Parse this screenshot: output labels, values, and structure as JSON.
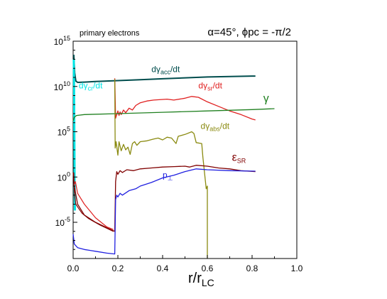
{
  "chart_data": {
    "type": "line",
    "title_left": "primary electrons",
    "title_right": "α=45°, ϕpc = -π/2",
    "xlabel": "r/rLC",
    "ylabel": "",
    "xlim": [
      0.0,
      1.0
    ],
    "ylim_log10": [
      -9,
      15
    ],
    "y_scale": "log",
    "grid": false,
    "legend": "none",
    "x_ticks": [
      {
        "value": 0.0,
        "label": "0.0"
      },
      {
        "value": 0.2,
        "label": "0.2"
      },
      {
        "value": 0.4,
        "label": "0.4"
      },
      {
        "value": 0.6,
        "label": "0.6"
      },
      {
        "value": 0.8,
        "label": "0.8"
      },
      {
        "value": 1.0,
        "label": "1.0"
      }
    ],
    "y_ticks": [
      {
        "exp": 15,
        "base": "10",
        "sup": "15"
      },
      {
        "exp": 10,
        "base": "10",
        "sup": "10"
      },
      {
        "exp": 5,
        "base": "10",
        "sup": "5"
      },
      {
        "exp": 0,
        "base": "10",
        "sup": "0"
      },
      {
        "exp": -5,
        "base": "10",
        "sup": "-5"
      }
    ],
    "series": [
      {
        "name": "dγacc/dt",
        "label": {
          "base": "dγ",
          "sub": "acc",
          "tail": "/dt"
        },
        "color": "#004d4d",
        "width": 2,
        "points": [
          [
            0.003,
            13.5
          ],
          [
            0.007,
            11.5
          ],
          [
            0.012,
            10.6
          ],
          [
            0.02,
            10.45
          ],
          [
            0.05,
            10.48
          ],
          [
            0.1,
            10.55
          ],
          [
            0.2,
            10.65
          ],
          [
            0.3,
            10.75
          ],
          [
            0.4,
            10.85
          ],
          [
            0.5,
            10.95
          ],
          [
            0.6,
            11.05
          ],
          [
            0.7,
            11.1
          ],
          [
            0.8,
            11.15
          ],
          [
            0.815,
            11.15
          ]
        ]
      },
      {
        "name": "dγcr/dt",
        "label": {
          "base": "dγ",
          "sub": "cr",
          "tail": "/dt"
        },
        "color": "#00e5e5",
        "width": 3,
        "points": [
          [
            0.003,
            13.0
          ],
          [
            0.004,
            10.0
          ],
          [
            0.005,
            6.0
          ],
          [
            0.006,
            2.0
          ],
          [
            0.007,
            -2.0
          ],
          [
            0.008,
            -3.7
          ]
        ]
      },
      {
        "name": "dγsr/dt",
        "label": {
          "base": "dγ",
          "sub": "sr",
          "tail": "/dt"
        },
        "color": "#e02020",
        "width": 1.3,
        "points": [
          [
            0.186,
            10.9
          ],
          [
            0.19,
            6.5
          ],
          [
            0.2,
            7.3
          ],
          [
            0.205,
            6.8
          ],
          [
            0.21,
            7.2
          ],
          [
            0.215,
            6.9
          ],
          [
            0.225,
            7.4
          ],
          [
            0.235,
            7.1
          ],
          [
            0.25,
            7.6
          ],
          [
            0.265,
            7.4
          ],
          [
            0.28,
            7.9
          ],
          [
            0.3,
            8.2
          ],
          [
            0.33,
            8.4
          ],
          [
            0.36,
            8.5
          ],
          [
            0.42,
            8.6
          ],
          [
            0.45,
            8.5
          ],
          [
            0.5,
            8.7
          ],
          [
            0.53,
            8.9
          ],
          [
            0.56,
            8.8
          ],
          [
            0.6,
            8.3
          ],
          [
            0.65,
            7.8
          ],
          [
            0.7,
            7.3
          ],
          [
            0.75,
            6.9
          ],
          [
            0.8,
            6.4
          ],
          [
            0.815,
            6.3
          ]
        ]
      },
      {
        "name": "γ",
        "label": {
          "base": "γ",
          "sub": "",
          "tail": ""
        },
        "color": "#208020",
        "width": 1.3,
        "points": [
          [
            0.0,
            6.2
          ],
          [
            0.005,
            6.6
          ],
          [
            0.015,
            6.8
          ],
          [
            0.05,
            6.9
          ],
          [
            0.2,
            7.0
          ],
          [
            0.4,
            7.15
          ],
          [
            0.6,
            7.3
          ],
          [
            0.8,
            7.45
          ],
          [
            0.9,
            7.55
          ]
        ]
      },
      {
        "name": "dγabs/dt",
        "label": {
          "base": "dγ",
          "sub": "abs",
          "tail": "/dt"
        },
        "color": "#8a8a10",
        "width": 1.3,
        "points": [
          [
            0.186,
            10.8
          ],
          [
            0.188,
            3.2
          ],
          [
            0.192,
            3.9
          ],
          [
            0.2,
            2.4
          ],
          [
            0.205,
            3.9
          ],
          [
            0.215,
            2.9
          ],
          [
            0.225,
            3.6
          ],
          [
            0.235,
            3.0
          ],
          [
            0.245,
            3.3
          ],
          [
            0.255,
            2.5
          ],
          [
            0.265,
            3.7
          ],
          [
            0.275,
            3.9
          ],
          [
            0.285,
            3.5
          ],
          [
            0.3,
            3.9
          ],
          [
            0.33,
            4.0
          ],
          [
            0.36,
            4.2
          ],
          [
            0.38,
            4.3
          ],
          [
            0.4,
            4.1
          ],
          [
            0.42,
            4.4
          ],
          [
            0.44,
            4.3
          ],
          [
            0.46,
            3.7
          ],
          [
            0.47,
            4.5
          ],
          [
            0.5,
            4.7
          ],
          [
            0.53,
            5.0
          ],
          [
            0.54,
            4.8
          ],
          [
            0.55,
            3.8
          ],
          [
            0.575,
            3.7
          ],
          [
            0.58,
            2.2
          ],
          [
            0.595,
            -1.3
          ],
          [
            0.6,
            -1.0
          ],
          [
            0.6,
            -11.0
          ]
        ]
      },
      {
        "name": "εSR",
        "label": {
          "base": "ε",
          "sub": "SR",
          "tail": ""
        },
        "color": "#800000",
        "width": 1.3,
        "points": [
          [
            0.0,
            0.5
          ],
          [
            0.005,
            -1.0
          ],
          [
            0.02,
            -3.0
          ],
          [
            0.05,
            -4.2
          ],
          [
            0.1,
            -5.0
          ],
          [
            0.15,
            -5.6
          ],
          [
            0.186,
            -6.0
          ],
          [
            0.19,
            -0.5
          ],
          [
            0.195,
            0.6
          ],
          [
            0.2,
            0.3
          ],
          [
            0.21,
            0.7
          ],
          [
            0.22,
            0.5
          ],
          [
            0.24,
            0.8
          ],
          [
            0.27,
            0.7
          ],
          [
            0.3,
            0.9
          ],
          [
            0.35,
            1.0
          ],
          [
            0.4,
            1.1
          ],
          [
            0.45,
            1.15
          ],
          [
            0.5,
            1.2
          ],
          [
            0.52,
            1.1
          ],
          [
            0.55,
            1.3
          ],
          [
            0.6,
            1.2
          ],
          [
            0.65,
            1.0
          ],
          [
            0.7,
            0.9
          ],
          [
            0.75,
            0.7
          ],
          [
            0.815,
            0.6
          ]
        ]
      },
      {
        "name": "p⊥",
        "label": {
          "base": "p",
          "sub": "⊥",
          "tail": ""
        },
        "color": "#2020e0",
        "width": 1.3,
        "points": [
          [
            0.0,
            -6.3
          ],
          [
            0.005,
            -7.4
          ],
          [
            0.02,
            -7.8
          ],
          [
            0.05,
            -8.0
          ],
          [
            0.1,
            -8.2
          ],
          [
            0.15,
            -8.4
          ],
          [
            0.186,
            -8.5
          ],
          [
            0.19,
            -2.5
          ],
          [
            0.195,
            -2.0
          ],
          [
            0.2,
            -2.2
          ],
          [
            0.21,
            -1.8
          ],
          [
            0.22,
            -2.0
          ],
          [
            0.25,
            -1.5
          ],
          [
            0.28,
            -1.3
          ],
          [
            0.3,
            -1.0
          ],
          [
            0.35,
            -0.6
          ],
          [
            0.4,
            -0.1
          ],
          [
            0.45,
            0.2
          ],
          [
            0.5,
            0.6
          ],
          [
            0.55,
            0.9
          ],
          [
            0.6,
            0.8
          ],
          [
            0.7,
            0.7
          ],
          [
            0.815,
            0.65
          ]
        ]
      },
      {
        "name": "primary-initial",
        "label": {
          "base": "",
          "sub": "",
          "tail": ""
        },
        "color": "#800000",
        "width": 1.2,
        "points": [
          [
            0.003,
            0.5
          ],
          [
            0.006,
            -2.0
          ],
          [
            0.012,
            -3.0
          ],
          [
            0.02,
            -3.3
          ],
          [
            0.04,
            -4.0
          ],
          [
            0.07,
            -4.6
          ],
          [
            0.12,
            -5.3
          ],
          [
            0.18,
            -6.0
          ]
        ]
      },
      {
        "name": "dγsr-initial",
        "label": {
          "base": "",
          "sub": "",
          "tail": ""
        },
        "color": "#e02020",
        "width": 1.2,
        "points": [
          [
            0.003,
            -1.0
          ],
          [
            0.01,
            -0.5
          ],
          [
            0.02,
            -1.8
          ],
          [
            0.05,
            -3.0
          ],
          [
            0.1,
            -4.5
          ],
          [
            0.15,
            -5.5
          ],
          [
            0.18,
            -5.8
          ]
        ]
      }
    ],
    "annotations": [
      {
        "series": "dγacc/dt",
        "x": 0.35,
        "y": 11.6
      },
      {
        "series": "dγcr/dt",
        "x": 0.025,
        "y": 9.8
      },
      {
        "series": "dγsr/dt",
        "x": 0.56,
        "y": 9.8
      },
      {
        "series": "γ",
        "x": 0.85,
        "y": 8.3
      },
      {
        "series": "dγabs/dt",
        "x": 0.57,
        "y": 5.3
      },
      {
        "series": "εSR",
        "x": 0.71,
        "y": 1.8
      },
      {
        "series": "p⊥",
        "x": 0.4,
        "y": -0.1
      }
    ]
  }
}
